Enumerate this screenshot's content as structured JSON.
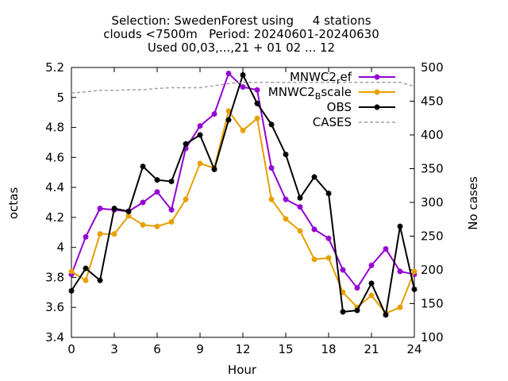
{
  "chart_data": {
    "type": "line",
    "title_lines": [
      "Selection: SwedenForest using     4 stations",
      "clouds <7500m   Period: 20240601-20240630",
      "Used 00,03,...,21 + 01 02 ... 12"
    ],
    "xlabel": "Hour",
    "ylabel": "octas",
    "y2label": "No cases",
    "xlim": [
      0,
      24
    ],
    "ylim": [
      3.4,
      5.2
    ],
    "y2lim": [
      100,
      500
    ],
    "xticks": [
      "0",
      "3",
      "6",
      "9",
      "12",
      "15",
      "18",
      "21",
      "24"
    ],
    "yticks": [
      "3.4",
      "3.6",
      "3.8",
      "4",
      "4.2",
      "4.4",
      "4.6",
      "4.8",
      "5",
      "5.2"
    ],
    "y2ticks": [
      "100",
      "150",
      "200",
      "250",
      "300",
      "350",
      "400",
      "450",
      "500"
    ],
    "grid": false,
    "legend_position": "top-right",
    "x": [
      0,
      1,
      2,
      3,
      4,
      5,
      6,
      7,
      8,
      9,
      10,
      11,
      12,
      13,
      14,
      15,
      16,
      17,
      18,
      19,
      20,
      21,
      22,
      23,
      24
    ],
    "series": [
      {
        "name": "MNWC2_ref",
        "legend_base": "MNWC2",
        "legend_sub": "r",
        "legend_rest": "ef",
        "color": "#9400d3",
        "axis": "y",
        "values": [
          3.82,
          4.07,
          4.26,
          4.25,
          4.24,
          4.3,
          4.37,
          4.25,
          4.66,
          4.81,
          4.89,
          5.16,
          5.07,
          5.05,
          4.53,
          4.32,
          4.27,
          4.12,
          4.06,
          3.85,
          3.73,
          3.88,
          3.99,
          3.84,
          3.82
        ]
      },
      {
        "name": "MNWC2_Bscale",
        "legend_base": "MNWC2",
        "legend_sub": "B",
        "legend_rest": "scale",
        "color": "#e69f00",
        "axis": "y",
        "values": [
          3.84,
          3.78,
          4.09,
          4.09,
          4.21,
          4.15,
          4.14,
          4.17,
          4.32,
          4.56,
          4.53,
          4.91,
          4.78,
          4.86,
          4.32,
          4.19,
          4.11,
          3.92,
          3.93,
          3.7,
          3.6,
          3.68,
          3.56,
          3.6,
          3.84
        ]
      },
      {
        "name": "OBS",
        "legend_base": "OBS",
        "legend_sub": "",
        "legend_rest": "",
        "color": "#000000",
        "axis": "y",
        "values": [
          3.71,
          3.86,
          3.78,
          4.26,
          4.24,
          4.54,
          4.45,
          4.44,
          4.69,
          4.75,
          4.52,
          4.85,
          5.15,
          4.96,
          4.82,
          4.62,
          4.33,
          4.47,
          4.36,
          3.57,
          3.58,
          3.76,
          3.55,
          4.14,
          3.72
        ]
      },
      {
        "name": "CASES",
        "legend_base": "CASES",
        "legend_sub": "",
        "legend_rest": "",
        "color": "#a0a0a0",
        "axis": "y2",
        "dashed": true,
        "values": [
          462,
          464,
          466,
          466,
          467,
          467,
          469,
          470,
          470,
          470,
          473,
          476,
          478,
          478,
          478,
          478,
          478,
          478,
          478,
          478,
          478,
          478,
          478,
          478,
          472
        ]
      }
    ]
  }
}
